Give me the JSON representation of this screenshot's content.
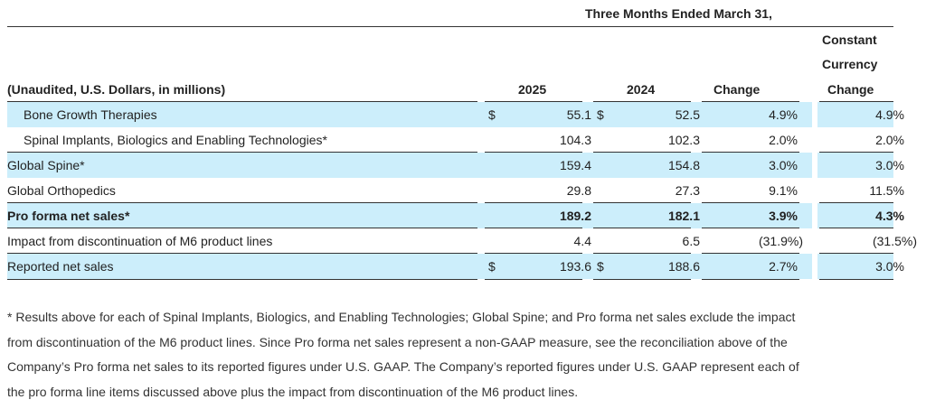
{
  "header": {
    "period": "Three Months Ended March 31,",
    "constant_l1": "Constant",
    "constant_l2": "Currency",
    "label_col": "(Unaudited, U.S. Dollars, in millions)",
    "col_2025": "2025",
    "col_2024": "2024",
    "col_change": "Change",
    "col_cc_change": "Change"
  },
  "rows": [
    {
      "label": "Bone Growth Therapies",
      "cur1": "$",
      "v2025": "55.1",
      "cur2": "$",
      "v2024": "52.5",
      "change": "4.9%",
      "cc": "4.9%"
    },
    {
      "label": "Spinal Implants, Biologics and Enabling Technologies*",
      "cur1": "",
      "v2025": "104.3",
      "cur2": "",
      "v2024": "102.3",
      "change": "2.0%",
      "cc": "2.0%"
    },
    {
      "label": "Global Spine*",
      "cur1": "",
      "v2025": "159.4",
      "cur2": "",
      "v2024": "154.8",
      "change": "3.0%",
      "cc": "3.0%"
    },
    {
      "label": "Global Orthopedics",
      "cur1": "",
      "v2025": "29.8",
      "cur2": "",
      "v2024": "27.3",
      "change": "9.1%",
      "cc": "11.5%"
    },
    {
      "label": "Pro forma net sales*",
      "cur1": "",
      "v2025": "189.2",
      "cur2": "",
      "v2024": "182.1",
      "change": "3.9%",
      "cc": "4.3%"
    },
    {
      "label": "Impact from discontinuation of M6 product lines",
      "cur1": "",
      "v2025": "4.4",
      "cur2": "",
      "v2024": "6.5",
      "change": "(31.9%)",
      "cc": "(31.5%)"
    },
    {
      "label": "Reported net sales",
      "cur1": "$",
      "v2025": "193.6",
      "cur2": "$",
      "v2024": "188.6",
      "change": "2.7%",
      "cc": "3.0%"
    }
  ],
  "footnote": [
    "* Results above for each of Spinal Implants, Biologics, and Enabling Technologies; Global Spine; and Pro forma net sales exclude the impact",
    "from discontinuation of the M6 product lines. Since Pro forma net sales represent a non-GAAP measure, see the reconciliation above of the",
    "Company’s Pro forma net sales to its reported figures under U.S. GAAP. The Company’s reported figures under U.S. GAAP represent each of",
    "the pro forma line items discussed above plus the impact from discontinuation of the M6 product lines."
  ],
  "colors": {
    "shade": "#cceefb",
    "rule": "#333333"
  }
}
